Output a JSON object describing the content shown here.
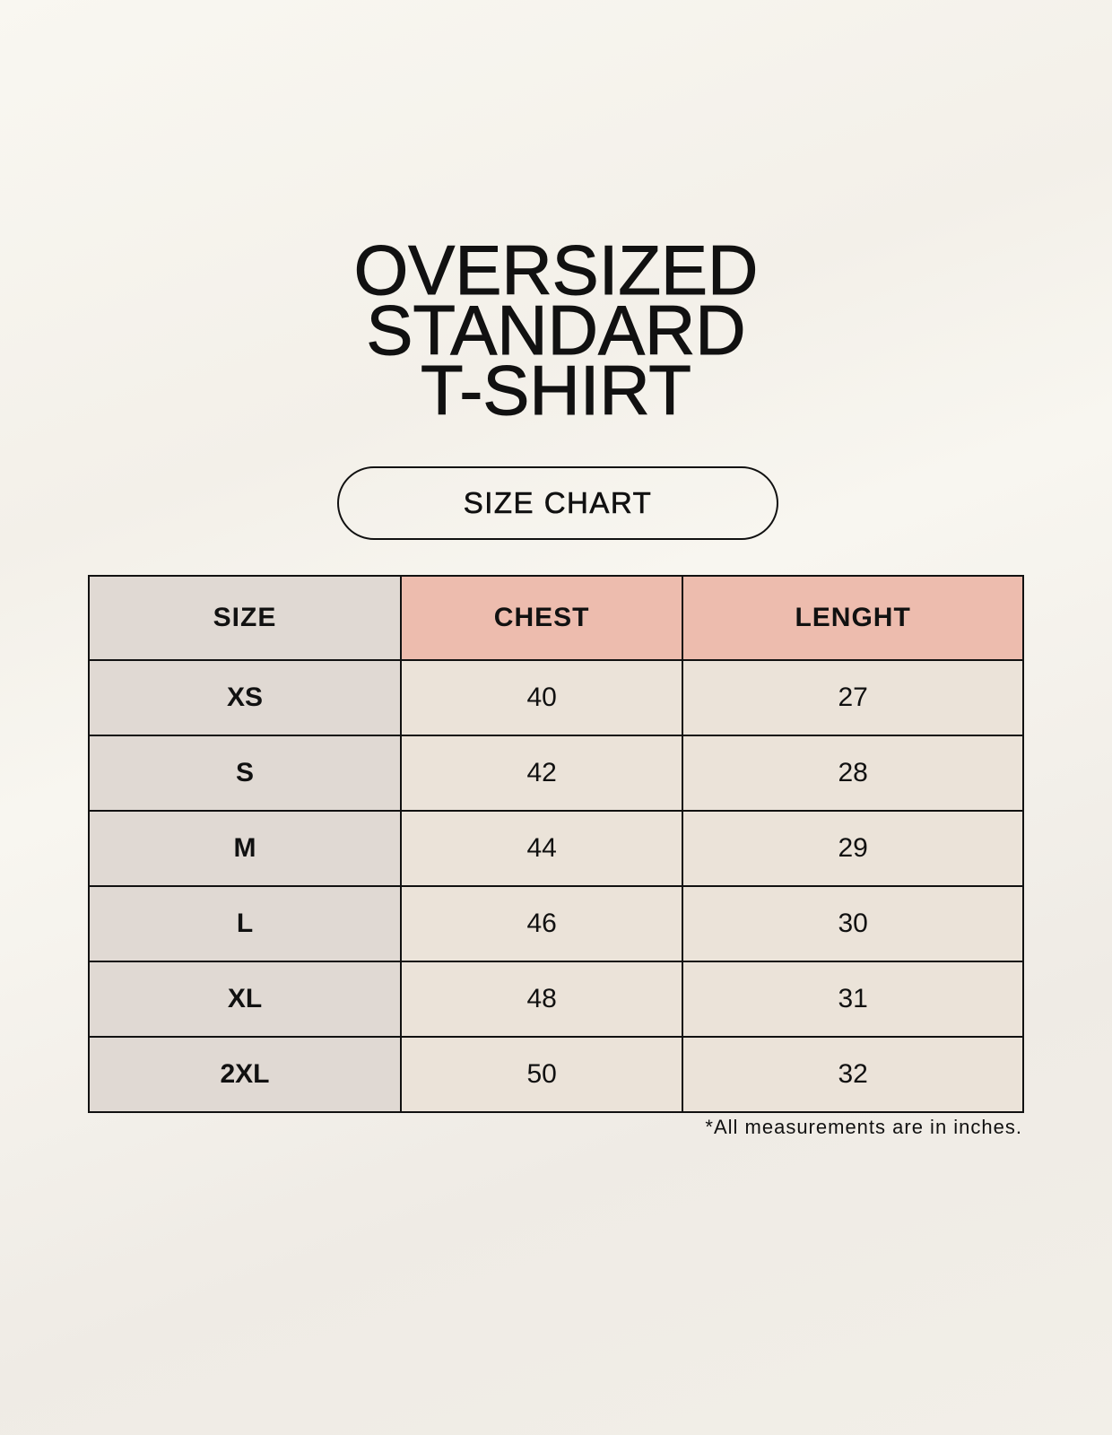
{
  "title_lines": [
    "OVERSIZED",
    "STANDARD",
    "T-SHIRT"
  ],
  "subtitle": "SIZE CHART",
  "table": {
    "headers": [
      "SIZE",
      "CHEST",
      "LENGHT"
    ],
    "rows": [
      [
        "XS",
        "40",
        "27"
      ],
      [
        "S",
        "42",
        "28"
      ],
      [
        "M",
        "44",
        "29"
      ],
      [
        "L",
        "46",
        "30"
      ],
      [
        "XL",
        "48",
        "31"
      ],
      [
        "2XL",
        "50",
        "32"
      ]
    ]
  },
  "footnote": "*All measurements are in inches.",
  "colors": {
    "header_accent": "#edbcae",
    "size_column": "#e0d9d3",
    "cells": "#ebe3d9"
  }
}
